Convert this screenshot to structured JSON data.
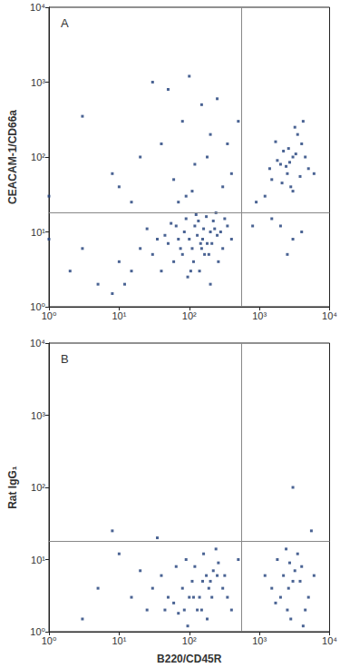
{
  "chart_data": [
    {
      "type": "scatter",
      "title": "A",
      "y_label": "CEACAM-1/CD66a",
      "log": true,
      "color": "#1d3c78",
      "marker": "square",
      "xlim": [
        1,
        10000
      ],
      "ylim": [
        1,
        10000
      ],
      "xticks": [
        {
          "value": 1,
          "label": "10⁰"
        },
        {
          "value": 10,
          "label": "10¹"
        },
        {
          "value": 100,
          "label": "10²"
        },
        {
          "value": 1000,
          "label": "10³"
        },
        {
          "value": 10000,
          "label": "10⁴"
        }
      ],
      "yticks": [
        {
          "value": 1,
          "label": "10⁰"
        },
        {
          "value": 10,
          "label": "10¹"
        },
        {
          "value": 100,
          "label": "10²"
        },
        {
          "value": 1000,
          "label": "10³"
        },
        {
          "value": 10000,
          "label": "10⁴"
        }
      ],
      "gates": {
        "x": 550,
        "y": 18
      },
      "x": [
        100,
        150,
        200,
        80,
        120,
        180,
        250,
        60,
        90,
        140,
        300,
        220,
        70,
        110,
        160,
        50,
        40,
        130,
        190,
        350,
        260,
        85,
        175,
        95,
        210,
        65,
        45,
        30,
        240,
        115,
        155,
        135,
        400,
        320,
        75,
        105,
        280,
        165,
        55,
        200,
        125,
        145,
        230,
        35,
        20,
        15,
        10,
        25,
        2000,
        3000,
        2500,
        4000,
        1500,
        3500,
        2200,
        2800,
        1800,
        5000,
        3200,
        2600,
        4500,
        1200,
        2400,
        3800,
        1700,
        3000,
        2100,
        4200,
        900,
        2700,
        3300,
        6000,
        1400,
        2000,
        3000,
        1500,
        4000,
        2500,
        800,
        30,
        50,
        100,
        150,
        80,
        200,
        40,
        20,
        120,
        60,
        300,
        10,
        3,
        250,
        180,
        90,
        15,
        400,
        500,
        70,
        8,
        350,
        110,
        1,
        5,
        3,
        8,
        2,
        1,
        12
      ],
      "values": [
        8,
        6,
        10,
        5,
        12,
        7,
        9,
        4,
        15,
        3,
        6,
        14,
        8,
        6,
        11,
        7,
        3,
        9,
        5,
        12,
        4,
        10,
        16,
        2.5,
        7,
        12,
        9,
        5,
        18,
        4,
        8,
        14,
        8,
        15,
        6,
        3,
        10,
        5,
        13,
        2,
        17,
        7,
        11,
        8,
        6,
        3,
        4,
        11,
        80,
        100,
        60,
        150,
        50,
        200,
        120,
        40,
        90,
        70,
        250,
        130,
        100,
        30,
        75,
        55,
        160,
        35,
        45,
        300,
        25,
        85,
        110,
        60,
        70,
        12,
        8,
        15,
        10,
        5,
        12,
        1000,
        800,
        1200,
        500,
        300,
        200,
        150,
        100,
        80,
        50,
        40,
        40,
        350,
        600,
        100,
        30,
        25,
        60,
        300,
        25,
        60,
        150,
        35,
        30,
        2,
        6,
        1.5,
        3,
        8,
        2
      ]
    },
    {
      "type": "scatter",
      "title": "B",
      "y_label": "Rat IgG₁",
      "x_label": "B220/CD45R",
      "log": true,
      "color": "#1d3c78",
      "marker": "square",
      "xlim": [
        1,
        10000
      ],
      "ylim": [
        1,
        10000
      ],
      "xticks": [
        {
          "value": 1,
          "label": "10⁰"
        },
        {
          "value": 10,
          "label": "10¹"
        },
        {
          "value": 100,
          "label": "10²"
        },
        {
          "value": 1000,
          "label": "10³"
        },
        {
          "value": 10000,
          "label": "10⁴"
        }
      ],
      "yticks": [
        {
          "value": 1,
          "label": "10⁰"
        },
        {
          "value": 10,
          "label": "10¹"
        },
        {
          "value": 100,
          "label": "10²"
        },
        {
          "value": 1000,
          "label": "10³"
        },
        {
          "value": 10000,
          "label": "10⁴"
        }
      ],
      "gates": {
        "x": 550,
        "y": 18
      },
      "x": [
        100,
        150,
        200,
        80,
        120,
        180,
        250,
        60,
        90,
        140,
        300,
        220,
        70,
        110,
        160,
        50,
        40,
        130,
        190,
        350,
        260,
        85,
        175,
        95,
        210,
        65,
        45,
        30,
        240,
        115,
        155,
        400,
        20,
        15,
        10,
        8,
        25,
        320,
        500,
        5,
        3,
        35,
        2000,
        3000,
        2500,
        4000,
        1500,
        3500,
        2200,
        2800,
        1800,
        5000,
        3200,
        2600,
        4500,
        1200,
        2400,
        3800,
        1700,
        3000,
        5500,
        4200,
        2700,
        6000
      ],
      "values": [
        3,
        2,
        5,
        4,
        8,
        1.5,
        6,
        2.5,
        10,
        3,
        4,
        7,
        1.8,
        5,
        12,
        3,
        6,
        2,
        4,
        3,
        9,
        2,
        6,
        1.2,
        3,
        8,
        2,
        4,
        14,
        3,
        5,
        2,
        7,
        3,
        12,
        25,
        2,
        6,
        10,
        4,
        1.5,
        20,
        3,
        5,
        2,
        8,
        4,
        12,
        6,
        1.5,
        10,
        3,
        7,
        4,
        2,
        6,
        14,
        5,
        2.5,
        100,
        25,
        1.2,
        9,
        6
      ]
    }
  ]
}
